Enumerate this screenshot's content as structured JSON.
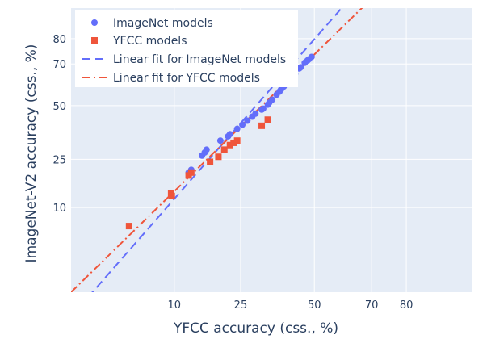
{
  "chart_data": {
    "type": "scatter",
    "xlabel": "YFCC accuracy (css., %)",
    "ylabel": "ImageNet-V2 accuracy (css., %)",
    "scale": "probit",
    "xlim": [
      1.3,
      92.5
    ],
    "ylim": [
      0.95,
      89.0
    ],
    "x_ticks": [
      10,
      25,
      50,
      70,
      80
    ],
    "y_ticks": [
      10,
      25,
      50,
      70,
      80
    ],
    "x_tick_labels": [
      "10",
      "25",
      "50",
      "70",
      "80"
    ],
    "y_tick_labels": [
      "10",
      "25",
      "50",
      "70",
      "80"
    ],
    "grid": true,
    "legend_position": "top-left",
    "colors": {
      "plot_bg": "#e5ecf6",
      "grid": "#ffffff",
      "imagenet": "#636efa",
      "yfcc": "#ef553b",
      "text": "#2a3f5f"
    },
    "series": [
      {
        "name": "ImageNet models",
        "kind": "scatter",
        "marker": "circle",
        "color": "#636efa",
        "points": [
          [
            12.5,
            20.0
          ],
          [
            13.0,
            21.0
          ],
          [
            15.2,
            26.5
          ],
          [
            15.8,
            27.8
          ],
          [
            16.2,
            29.0
          ],
          [
            19.5,
            33.0
          ],
          [
            21.5,
            35.0
          ],
          [
            22.0,
            36.0
          ],
          [
            24.0,
            38.5
          ],
          [
            25.5,
            40.5
          ],
          [
            27.0,
            42.5
          ],
          [
            28.5,
            44.5
          ],
          [
            29.5,
            46.0
          ],
          [
            31.5,
            48.0
          ],
          [
            32.0,
            48.5
          ],
          [
            33.5,
            50.5
          ],
          [
            34.0,
            51.5
          ],
          [
            35.0,
            53.0
          ],
          [
            36.5,
            55.5
          ],
          [
            37.5,
            57.0
          ],
          [
            38.0,
            58.0
          ],
          [
            39.0,
            59.5
          ],
          [
            40.0,
            61.0
          ],
          [
            41.5,
            63.0
          ],
          [
            42.0,
            64.0
          ],
          [
            43.0,
            65.5
          ],
          [
            44.5,
            68.0
          ],
          [
            45.0,
            68.5
          ],
          [
            46.5,
            70.5
          ],
          [
            47.5,
            71.5
          ],
          [
            48.0,
            72.0
          ],
          [
            49.0,
            73.0
          ]
        ]
      },
      {
        "name": "YFCC models",
        "kind": "scatter",
        "marker": "square",
        "color": "#ef553b",
        "points": [
          [
            4.5,
            6.5
          ],
          [
            9.5,
            13.5
          ],
          [
            9.6,
            12.8
          ],
          [
            12.5,
            19.0
          ],
          [
            13.0,
            20.0
          ],
          [
            17.0,
            24.0
          ],
          [
            19.0,
            26.0
          ],
          [
            20.5,
            29.0
          ],
          [
            22.0,
            31.0
          ],
          [
            23.0,
            32.0
          ],
          [
            24.0,
            33.0
          ],
          [
            31.5,
            40.0
          ],
          [
            33.5,
            43.0
          ]
        ]
      },
      {
        "name": "Linear fit for ImageNet models",
        "kind": "line",
        "dash": "dash",
        "color": "#636efa",
        "x": [
          1.3,
          92.5
        ],
        "y": [
          0.4,
          99.9
        ]
      },
      {
        "name": "Linear fit for YFCC models",
        "kind": "line",
        "dash": "dashdot",
        "color": "#ef553b",
        "x": [
          1.3,
          92.5
        ],
        "y": [
          0.95,
          99.5
        ]
      }
    ]
  }
}
